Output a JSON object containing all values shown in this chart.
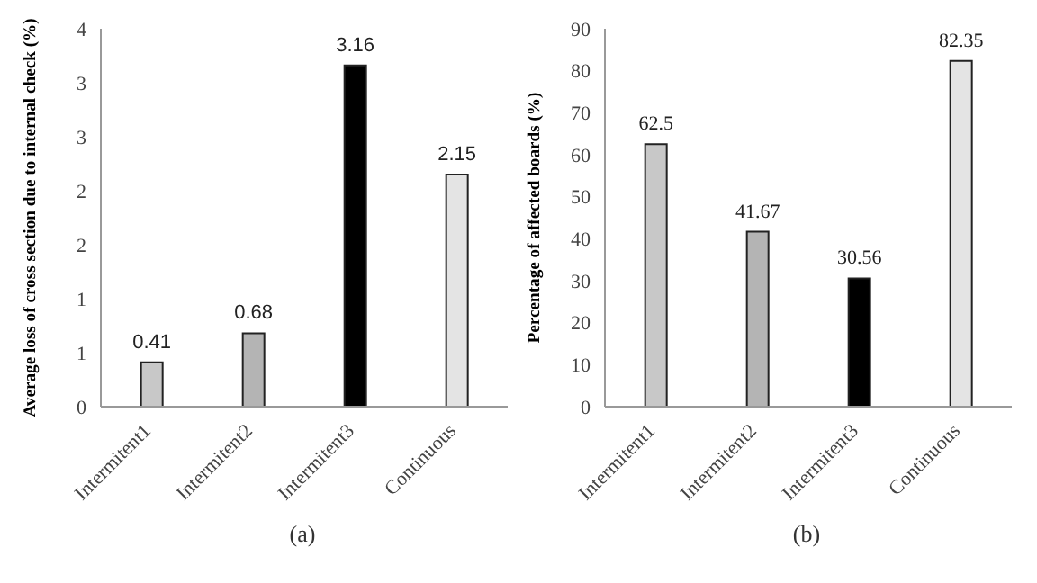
{
  "chart_data": [
    {
      "type": "bar",
      "ylabel": "Average loss of cross section due to internal check (%)",
      "categories": [
        "Intermitent1",
        "Intermitent2",
        "Intermitent3",
        "Continuous"
      ],
      "values": [
        0.41,
        0.68,
        3.16,
        2.15
      ],
      "colors": [
        "#c8c8c8",
        "#b4b4b4",
        "#000000",
        "#e4e4e4"
      ],
      "ylim": [
        0,
        3.5
      ],
      "yticks": [
        0,
        {
          "value": 0.5,
          "label": "1"
        },
        1,
        {
          "value": 1.5,
          "label": "2"
        },
        2,
        {
          "value": 2.5,
          "label": "3"
        },
        3,
        {
          "value": 3.5,
          "label": "4"
        }
      ],
      "data_labels": true,
      "annotations": [
        "(a)"
      ]
    },
    {
      "type": "bar",
      "ylabel": "Percentage of affected boards (%)",
      "categories": [
        "Intermitent1",
        "Intermitent2",
        "Intermitent3",
        "Continuous"
      ],
      "values": [
        62.5,
        41.67,
        30.56,
        82.35
      ],
      "colors": [
        "#c8c8c8",
        "#b4b4b4",
        "#000000",
        "#e4e4e4"
      ],
      "ylim": [
        0,
        90
      ],
      "yticks": [
        0,
        10,
        20,
        30,
        40,
        50,
        60,
        70,
        80,
        90
      ],
      "data_labels": true,
      "annotations": [
        "(b)"
      ]
    }
  ]
}
